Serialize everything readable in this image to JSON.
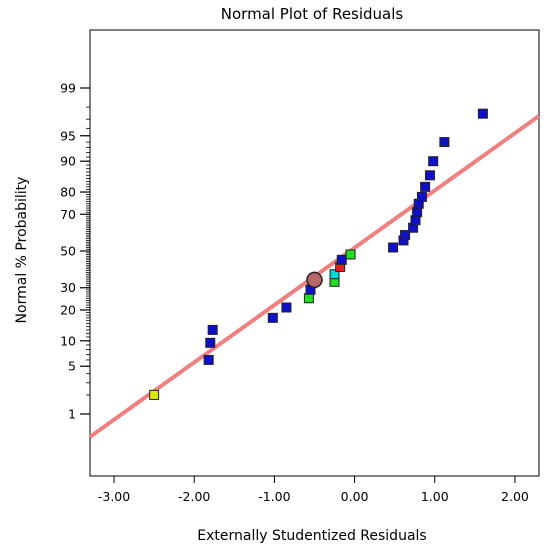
{
  "chart_data": {
    "type": "scatter",
    "title": "Normal Plot of Residuals",
    "xlabel": "Externally Studentized Residuals",
    "ylabel": "Normal % Probability",
    "xlim": [
      -3.3,
      2.3
    ],
    "x_ticks": [
      "-3.00",
      "-2.00",
      "-1.00",
      "0.00",
      "1.00",
      "2.00"
    ],
    "y_scale": "normal-probability",
    "y_ticks": [
      "1",
      "5",
      "10",
      "20",
      "30",
      "50",
      "70",
      "80",
      "90",
      "95",
      "99"
    ],
    "grid": false,
    "reference_line": {
      "x": [
        -3.3,
        2.3
      ],
      "y": [
        0.4,
        97.3
      ],
      "color": "#f08080"
    },
    "highlighted_point": {
      "x": -0.5,
      "y": 34,
      "color": "#b86868"
    },
    "points": [
      {
        "x": -2.5,
        "y": 2,
        "color": "#d8e800"
      },
      {
        "x": -1.82,
        "y": 6,
        "color": "#1010cc"
      },
      {
        "x": -1.8,
        "y": 9.5,
        "color": "#1010cc"
      },
      {
        "x": -1.77,
        "y": 13,
        "color": "#1010cc"
      },
      {
        "x": -1.02,
        "y": 17,
        "color": "#1010cc"
      },
      {
        "x": -0.85,
        "y": 21,
        "color": "#1010cc"
      },
      {
        "x": -0.57,
        "y": 25,
        "color": "#22dd22"
      },
      {
        "x": -0.55,
        "y": 29,
        "color": "#1010cc"
      },
      {
        "x": -0.25,
        "y": 33,
        "color": "#22dd22"
      },
      {
        "x": -0.25,
        "y": 37,
        "color": "#00d8d8"
      },
      {
        "x": -0.18,
        "y": 41,
        "color": "#e82020"
      },
      {
        "x": -0.16,
        "y": 45,
        "color": "#1010cc"
      },
      {
        "x": -0.05,
        "y": 48,
        "color": "#22dd22"
      },
      {
        "x": 0.48,
        "y": 52,
        "color": "#1010cc"
      },
      {
        "x": 0.61,
        "y": 56,
        "color": "#1010cc"
      },
      {
        "x": 0.63,
        "y": 59,
        "color": "#1010cc"
      },
      {
        "x": 0.73,
        "y": 63,
        "color": "#1010cc"
      },
      {
        "x": 0.76,
        "y": 67,
        "color": "#1010cc"
      },
      {
        "x": 0.78,
        "y": 71,
        "color": "#1010cc"
      },
      {
        "x": 0.8,
        "y": 75,
        "color": "#1010cc"
      },
      {
        "x": 0.84,
        "y": 78,
        "color": "#1010cc"
      },
      {
        "x": 0.88,
        "y": 82,
        "color": "#1010cc"
      },
      {
        "x": 0.94,
        "y": 86,
        "color": "#1010cc"
      },
      {
        "x": 0.98,
        "y": 90,
        "color": "#1010cc"
      },
      {
        "x": 1.12,
        "y": 94,
        "color": "#1010cc"
      },
      {
        "x": 1.6,
        "y": 97.5,
        "color": "#1010cc"
      }
    ]
  }
}
